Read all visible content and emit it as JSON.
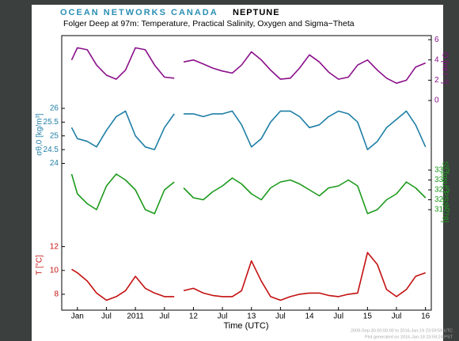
{
  "header": {
    "brand": "OCEAN NETWORKS CANADA",
    "product": "NEPTUNE"
  },
  "chart_data": [
    {
      "type": "line",
      "title": "Folger Deep  at 97m: Temperature, Practical Salinity, Oxygen and Sigma−Theta",
      "ylabel": "O [ml l⁻¹]",
      "axis_side": "right",
      "color": "#8a0f8a",
      "xlim": [
        2009.73,
        2016.1
      ],
      "ylim": [
        0,
        6.4
      ],
      "yticks": [
        0,
        2,
        4,
        6
      ],
      "x": [
        2009.9,
        2010.0,
        2010.17,
        2010.33,
        2010.5,
        2010.67,
        2010.83,
        2011.0,
        2011.17,
        2011.33,
        2011.5,
        2011.67,
        2011.75,
        2011.83,
        2012.0,
        2012.17,
        2012.33,
        2012.5,
        2012.67,
        2012.83,
        2013.0,
        2013.17,
        2013.33,
        2013.5,
        2013.67,
        2013.83,
        2014.0,
        2014.17,
        2014.33,
        2014.5,
        2014.67,
        2014.83,
        2015.0,
        2015.17,
        2015.33,
        2015.5,
        2015.67,
        2015.83,
        2016.0
      ],
      "values": [
        4.0,
        5.2,
        5.0,
        3.5,
        2.5,
        2.1,
        3.0,
        5.2,
        5.0,
        3.5,
        2.3,
        2.2,
        null,
        3.8,
        4.0,
        3.6,
        3.2,
        2.9,
        2.7,
        3.5,
        4.8,
        4.0,
        3.0,
        2.1,
        2.2,
        3.2,
        4.5,
        3.8,
        2.8,
        2.1,
        2.3,
        3.5,
        4.0,
        3.0,
        2.2,
        1.7,
        2.0,
        3.3,
        3.7
      ]
    },
    {
      "type": "line",
      "ylabel": "σθ,0 [kg/m³]",
      "axis_side": "left",
      "color": "#1f7fa6",
      "xlim": [
        2009.73,
        2016.1
      ],
      "ylim": [
        23.9,
        26.2
      ],
      "yticks": [
        24,
        24.5,
        25,
        25.5,
        26
      ],
      "x": [
        2009.9,
        2010.0,
        2010.17,
        2010.33,
        2010.5,
        2010.67,
        2010.83,
        2011.0,
        2011.17,
        2011.33,
        2011.5,
        2011.67,
        2011.75,
        2011.83,
        2012.0,
        2012.17,
        2012.33,
        2012.5,
        2012.67,
        2012.83,
        2013.0,
        2013.17,
        2013.33,
        2013.5,
        2013.67,
        2013.83,
        2014.0,
        2014.17,
        2014.33,
        2014.5,
        2014.67,
        2014.83,
        2015.0,
        2015.17,
        2015.33,
        2015.5,
        2015.67,
        2015.83,
        2016.0
      ],
      "values": [
        25.3,
        24.9,
        24.8,
        24.6,
        25.2,
        25.7,
        25.9,
        25.0,
        24.6,
        24.5,
        25.3,
        25.8,
        null,
        25.8,
        25.8,
        25.7,
        25.8,
        25.8,
        25.9,
        25.4,
        24.6,
        24.9,
        25.5,
        25.9,
        25.9,
        25.7,
        25.3,
        25.4,
        25.7,
        25.9,
        25.8,
        25.5,
        24.5,
        24.8,
        25.3,
        25.6,
        25.9,
        25.4,
        24.6
      ]
    },
    {
      "type": "line",
      "ylabel": "S₀ [psu, PSS−78]",
      "axis_side": "right",
      "color": "#1c9a1c",
      "xlim": [
        2009.73,
        2016.1
      ],
      "ylim": [
        31.1,
        33.7
      ],
      "yticks": [
        31.5,
        32,
        32.5,
        33,
        33.5
      ],
      "x": [
        2009.9,
        2010.0,
        2010.17,
        2010.33,
        2010.5,
        2010.67,
        2010.83,
        2011.0,
        2011.17,
        2011.33,
        2011.5,
        2011.67,
        2011.75,
        2011.83,
        2012.0,
        2012.17,
        2012.33,
        2012.5,
        2012.67,
        2012.83,
        2013.0,
        2013.17,
        2013.33,
        2013.5,
        2013.67,
        2013.83,
        2014.0,
        2014.17,
        2014.33,
        2014.5,
        2014.67,
        2014.83,
        2015.0,
        2015.17,
        2015.33,
        2015.5,
        2015.67,
        2015.83,
        2016.0
      ],
      "values": [
        33.3,
        32.3,
        31.8,
        31.5,
        32.7,
        33.3,
        33.0,
        32.5,
        31.5,
        31.3,
        32.5,
        32.9,
        null,
        32.6,
        32.1,
        32.0,
        32.4,
        32.7,
        33.1,
        32.8,
        32.3,
        32.0,
        32.6,
        32.9,
        33.0,
        32.8,
        32.5,
        32.2,
        32.6,
        32.7,
        33.0,
        32.7,
        31.3,
        31.5,
        32.0,
        32.3,
        32.9,
        32.6,
        32.1
      ]
    },
    {
      "type": "line",
      "ylabel": "T [°C]",
      "axis_side": "left",
      "color": "#c40f0f",
      "xlabel": "Time (UTC)",
      "xlim": [
        2009.73,
        2016.1
      ],
      "ylim": [
        6.8,
        14.1
      ],
      "yticks": [
        8,
        10,
        12
      ],
      "xticks": [
        {
          "value": 2010,
          "label": "Jan"
        },
        {
          "value": 2010.5,
          "label": "Jul"
        },
        2011,
        {
          "value": 2011.5,
          "label": "Jul"
        },
        {
          "value": 2012,
          "label": "12"
        },
        {
          "value": 2012.5,
          "label": "Jul"
        },
        {
          "value": 2013,
          "label": "13"
        },
        {
          "value": 2013.5,
          "label": "Jul"
        },
        {
          "value": 2014,
          "label": "14"
        },
        {
          "value": 2014.5,
          "label": "Jul"
        },
        {
          "value": 2015,
          "label": "15"
        },
        {
          "value": 2015.5,
          "label": "Jul"
        },
        {
          "value": 2016,
          "label": "16"
        }
      ],
      "x": [
        2009.9,
        2010.0,
        2010.17,
        2010.33,
        2010.5,
        2010.67,
        2010.83,
        2011.0,
        2011.17,
        2011.33,
        2011.5,
        2011.67,
        2011.75,
        2011.83,
        2012.0,
        2012.17,
        2012.33,
        2012.5,
        2012.67,
        2012.83,
        2013.0,
        2013.17,
        2013.33,
        2013.5,
        2013.67,
        2013.83,
        2014.0,
        2014.17,
        2014.33,
        2014.5,
        2014.67,
        2014.83,
        2015.0,
        2015.17,
        2015.33,
        2015.5,
        2015.67,
        2015.83,
        2016.0
      ],
      "values": [
        10.1,
        9.8,
        9.1,
        8.1,
        7.5,
        7.8,
        8.3,
        9.5,
        8.5,
        8.1,
        7.8,
        7.8,
        null,
        8.3,
        8.5,
        8.1,
        7.9,
        7.8,
        7.8,
        8.3,
        10.8,
        9.1,
        7.8,
        7.5,
        7.8,
        8.0,
        8.1,
        8.1,
        7.9,
        7.8,
        8.0,
        8.1,
        11.5,
        10.5,
        8.4,
        7.8,
        8.4,
        9.5,
        9.8
      ]
    }
  ],
  "footer": [
    "2009-Sep-30 00:00:00 to 2016-Jan-19 23:59:59 UTC",
    "Plot generated on 2016-Jan-19 23:59:24 PST"
  ]
}
